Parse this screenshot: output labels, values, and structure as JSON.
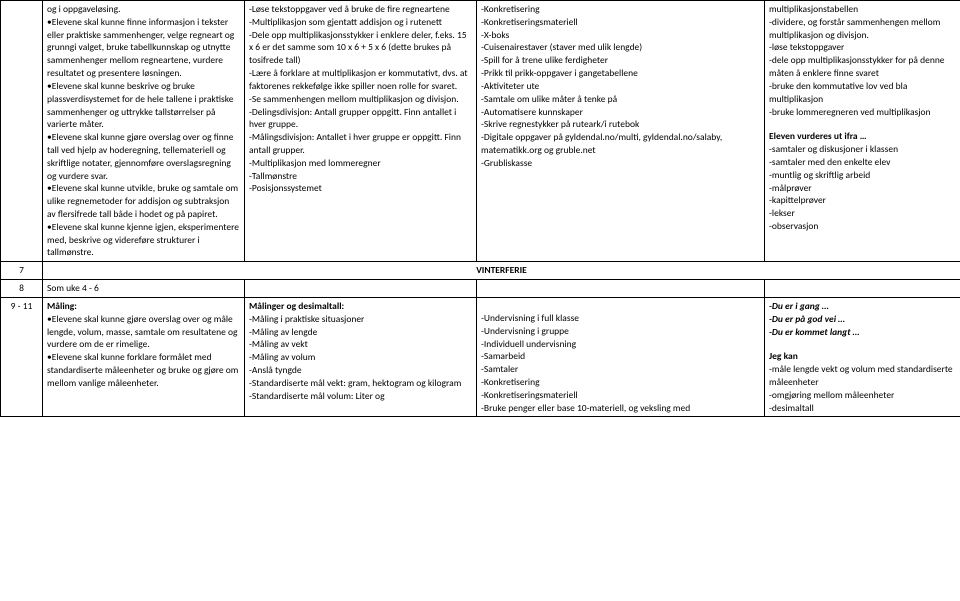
{
  "colors": {
    "text": "#000000",
    "border": "#000000",
    "bg": "#ffffff"
  },
  "fontsize_pt": 9.5,
  "rows": [
    {
      "num": "",
      "a": [
        {
          "t": "plain",
          "v": "og i oppgaveløsing."
        },
        {
          "t": "bullet",
          "v": "Elevene skal kunne finne informasjon i tekster eller praktiske sammenhenger, velge regneart og grunngi valget, bruke tabellkunnskap og utnytte sammenhenger mellom regneartene, vurdere resultatet og presentere løsningen."
        },
        {
          "t": "bullet",
          "v": "Elevene skal kunne beskrive og bruke plassverdisystemet for de hele tallene i praktiske sammenhenger og uttrykke tallstørrelser på varierte måter."
        },
        {
          "t": "bullet",
          "v": "Elevene skal kunne gjøre overslag over og finne tall ved hjelp av hoderegning, tellemateriell og skriftlige notater, gjennomføre overslagsregning og vurdere svar."
        },
        {
          "t": "bullet",
          "v": "Elevene skal kunne utvikle, bruke og samtale om ulike regnemetoder for addisjon og subtraksjon av flersifrede tall både i hodet og på papiret."
        },
        {
          "t": "bullet",
          "v": "Elevene skal kunne kjenne igjen, eksperimentere med, beskrive og videreføre strukturer i tallmønstre."
        }
      ],
      "b": [
        {
          "t": "plain",
          "v": "-Løse tekstoppgaver ved å bruke de fire regneartene"
        },
        {
          "t": "plain",
          "v": "-Multiplikasjon som gjentatt addisjon og i rutenett"
        },
        {
          "t": "plain",
          "v": "-Dele opp multiplikasjonsstykker i enklere deler, f.eks. 15 x 6 er det samme som 10 x 6 + 5 x 6 (dette brukes på tosifrede tall)"
        },
        {
          "t": "plain",
          "v": "-Lære å forklare at multiplikasjon er kommutativt, dvs. at faktorenes rekkefølge ikke spiller noen rolle for svaret."
        },
        {
          "t": "plain",
          "v": "-Se sammenhengen mellom multiplikasjon og divisjon."
        },
        {
          "t": "plain",
          "v": "-Delingsdivisjon: Antall grupper oppgitt. Finn antallet i hver gruppe."
        },
        {
          "t": "plain",
          "v": "-Målingsdivisjon: Antallet i hver gruppe er oppgitt. Finn antall grupper."
        },
        {
          "t": "plain",
          "v": "-Multiplikasjon med lommeregner"
        },
        {
          "t": "plain",
          "v": "-Tallmønstre"
        },
        {
          "t": "plain",
          "v": "-Posisjonssystemet"
        }
      ],
      "c": [
        {
          "t": "plain",
          "v": "-Konkretisering"
        },
        {
          "t": "plain",
          "v": "-Konkretiseringsmateriell"
        },
        {
          "t": "plain",
          "v": "-X-boks"
        },
        {
          "t": "plain",
          "v": "-Cuisenairestaver (staver med ulik lengde)"
        },
        {
          "t": "plain",
          "v": "-Spill for å trene ulike ferdigheter"
        },
        {
          "t": "plain",
          "v": "-Prikk til prikk-oppgaver i gangetabellene"
        },
        {
          "t": "plain",
          "v": "-Aktiviteter ute"
        },
        {
          "t": "plain",
          "v": "-Samtale om ulike måter å tenke på"
        },
        {
          "t": "plain",
          "v": "-Automatisere kunnskaper"
        },
        {
          "t": "plain",
          "v": "-Skrive regnestykker på ruteark/i rutebok"
        },
        {
          "t": "plain",
          "v": "-Digitale oppgaver på gyldendal.no/multi, gyldendal.no/salaby, matematikk.org og gruble.net"
        },
        {
          "t": "plain",
          "v": "-Grubliskasse"
        }
      ],
      "d": [
        {
          "t": "plain",
          "v": "multiplikasjonstabellen"
        },
        {
          "t": "plain",
          "v": "-dividere, og forstår sammenhengen mellom multiplikasjon og divisjon."
        },
        {
          "t": "plain",
          "v": "-løse tekstoppgaver"
        },
        {
          "t": "plain",
          "v": "-dele opp multiplikasjonsstykker for på denne måten å enklere finne svaret"
        },
        {
          "t": "plain",
          "v": "-bruke den kommutative lov ved bla multiplikasjon"
        },
        {
          "t": "plain",
          "v": "-bruke lommeregneren ved multiplikasjon"
        },
        {
          "t": "blank"
        },
        {
          "t": "bold",
          "v": "Eleven vurderes ut ifra …"
        },
        {
          "t": "plain",
          "v": "-samtaler og diskusjoner i klassen"
        },
        {
          "t": "plain",
          "v": "-samtaler med den enkelte elev"
        },
        {
          "t": "plain",
          "v": "-muntlig og skriftlig arbeid"
        },
        {
          "t": "plain",
          "v": "-målprøver"
        },
        {
          "t": "plain",
          "v": "-kapittelprøver"
        },
        {
          "t": "plain",
          "v": "-lekser"
        },
        {
          "t": "plain",
          "v": "-observasjon"
        }
      ]
    },
    {
      "num": "7",
      "center": "VINTERFERIE"
    },
    {
      "num": "8",
      "a": [
        {
          "t": "plain",
          "v": "Som uke 4 - 6"
        }
      ],
      "b": [],
      "c": [],
      "d": []
    },
    {
      "num": "9 - 11",
      "a": [
        {
          "t": "bold",
          "v": "Måling:"
        },
        {
          "t": "bullet",
          "v": "Elevene skal kunne gjøre overslag over og måle lengde, volum, masse, samtale om resultatene og vurdere om de er rimelige."
        },
        {
          "t": "bullet",
          "v": "Elevene skal kunne forklare formålet med standardiserte måleenheter og bruke og gjøre om mellom vanlige måleenheter."
        }
      ],
      "b": [
        {
          "t": "bold",
          "v": "Målinger og desimaltall:"
        },
        {
          "t": "plain",
          "v": "-Måling i praktiske situasjoner"
        },
        {
          "t": "plain",
          "v": "-Måling av lengde"
        },
        {
          "t": "plain",
          "v": "-Måling av vekt"
        },
        {
          "t": "plain",
          "v": "-Måling av volum"
        },
        {
          "t": "plain",
          "v": "-Anslå tyngde"
        },
        {
          "t": "plain",
          "v": "-Standardiserte mål vekt: gram, hektogram og kilogram"
        },
        {
          "t": "plain",
          "v": "-Standardiserte mål volum: Liter og"
        }
      ],
      "c": [
        {
          "t": "blank"
        },
        {
          "t": "plain",
          "v": "-Undervisning i full klasse"
        },
        {
          "t": "plain",
          "v": "-Undervisning i gruppe"
        },
        {
          "t": "plain",
          "v": "-Individuell undervisning"
        },
        {
          "t": "plain",
          "v": "-Samarbeid"
        },
        {
          "t": "plain",
          "v": "-Samtaler"
        },
        {
          "t": "plain",
          "v": "-Konkretisering"
        },
        {
          "t": "plain",
          "v": "-Konkretiseringsmateriell"
        },
        {
          "t": "plain",
          "v": "-Bruke penger eller base 10-materiell, og veksling med"
        }
      ],
      "d": [
        {
          "t": "boldital",
          "v": "-Du er i gang …"
        },
        {
          "t": "boldital",
          "v": "-Du er på god vei …"
        },
        {
          "t": "boldital",
          "v": "-Du er kommet langt …"
        },
        {
          "t": "blank"
        },
        {
          "t": "bold",
          "v": "Jeg kan"
        },
        {
          "t": "plain",
          "v": "-måle lengde vekt og volum med standardiserte måleenheter"
        },
        {
          "t": "plain",
          "v": "-omgjøring mellom måleenheter"
        },
        {
          "t": "plain",
          "v": "-desimaltall"
        }
      ]
    }
  ]
}
